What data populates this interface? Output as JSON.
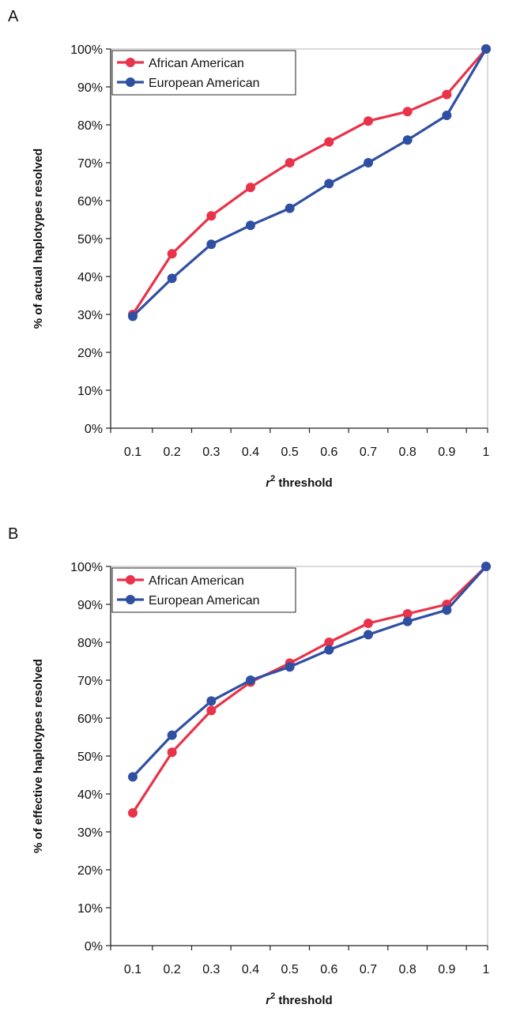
{
  "colors": {
    "african_american": "#e8334a",
    "european_american": "#2f4fa2"
  },
  "chart_data": [
    {
      "type": "line",
      "panel_label": "A",
      "x": [
        0.1,
        0.2,
        0.3,
        0.4,
        0.5,
        0.6,
        0.7,
        0.8,
        0.9,
        1
      ],
      "x_tick_labels": [
        "0.1",
        "0.2",
        "0.3",
        "0.4",
        "0.5",
        "0.6",
        "0.7",
        "0.8",
        "0.9",
        "1"
      ],
      "xlabel_var": "r",
      "xlabel_sup": "2",
      "xlabel_rest": " threshold",
      "ylabel": "% of actual haplotypes resolved",
      "ylim": [
        0,
        100
      ],
      "y_tick_labels": [
        "0%",
        "10%",
        "20%",
        "30%",
        "40%",
        "50%",
        "60%",
        "70%",
        "80%",
        "90%",
        "100%"
      ],
      "grid": false,
      "legend_position": "top-left",
      "series": [
        {
          "name": "African American",
          "color": "#e8334a",
          "values": [
            30,
            46,
            56,
            63.5,
            70,
            75.5,
            81,
            83.5,
            88,
            100
          ]
        },
        {
          "name": "European American",
          "color": "#2f4fa2",
          "values": [
            29.5,
            39.5,
            48.5,
            53.5,
            58,
            64.5,
            70,
            76,
            82.5,
            100
          ]
        }
      ]
    },
    {
      "type": "line",
      "panel_label": "B",
      "x": [
        0.1,
        0.2,
        0.3,
        0.4,
        0.5,
        0.6,
        0.7,
        0.8,
        0.9,
        1
      ],
      "x_tick_labels": [
        "0.1",
        "0.2",
        "0.3",
        "0.4",
        "0.5",
        "0.6",
        "0.7",
        "0.8",
        "0.9",
        "1"
      ],
      "xlabel_var": "r",
      "xlabel_sup": "2",
      "xlabel_rest": " threshold",
      "ylabel": "% of effective haplotypes resolved",
      "ylim": [
        0,
        100
      ],
      "y_tick_labels": [
        "0%",
        "10%",
        "20%",
        "30%",
        "40%",
        "50%",
        "60%",
        "70%",
        "80%",
        "90%",
        "100%"
      ],
      "grid": false,
      "legend_position": "top-left",
      "series": [
        {
          "name": "African American",
          "color": "#e8334a",
          "values": [
            35,
            51,
            62,
            69.5,
            74.5,
            80,
            85,
            87.5,
            90,
            100
          ]
        },
        {
          "name": "European American",
          "color": "#2f4fa2",
          "values": [
            44.5,
            55.5,
            64.5,
            70,
            73.5,
            78,
            82,
            85.5,
            88.5,
            100
          ]
        }
      ]
    }
  ]
}
